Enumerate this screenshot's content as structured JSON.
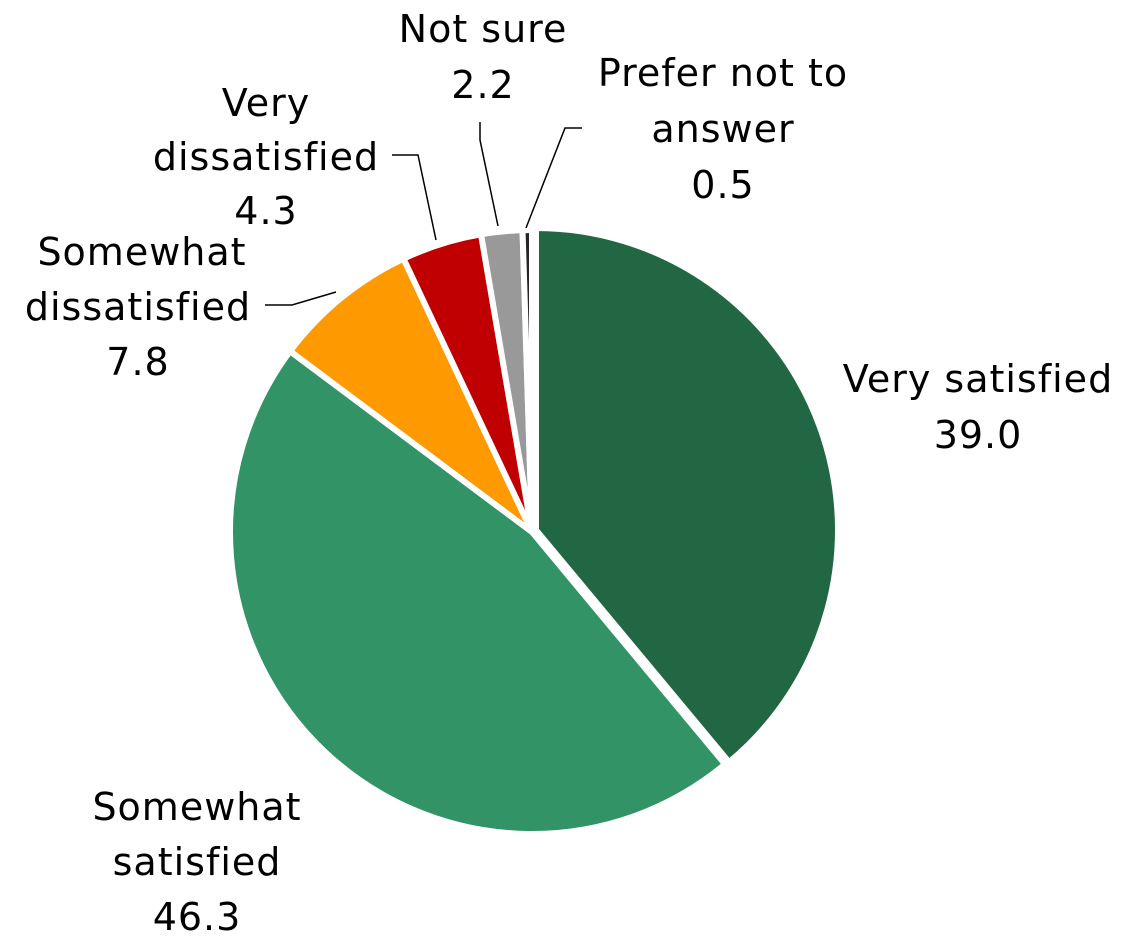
{
  "chart_data": {
    "type": "pie",
    "start_angle_deg": 0,
    "direction": "clockwise",
    "slices": [
      {
        "label_lines": [
          "Very satisfied"
        ],
        "value": 39.0,
        "value_text": "39.0",
        "color": "#226744"
      },
      {
        "label_lines": [
          "Somewhat",
          "satisfied"
        ],
        "value": 46.3,
        "value_text": "46.3",
        "color": "#319366"
      },
      {
        "label_lines": [
          "Somewhat",
          "dissatisfied"
        ],
        "value": 7.8,
        "value_text": "7.8",
        "color": "#FF9900"
      },
      {
        "label_lines": [
          "Very",
          "dissatisfied"
        ],
        "value": 4.3,
        "value_text": "4.3",
        "color": "#C00000"
      },
      {
        "label_lines": [
          "Not sure"
        ],
        "value": 2.2,
        "value_text": "2.2",
        "color": "#999999"
      },
      {
        "label_lines": [
          "Prefer not to",
          "answer"
        ],
        "value": 0.5,
        "value_text": "0.5",
        "color": "#262626"
      }
    ]
  }
}
